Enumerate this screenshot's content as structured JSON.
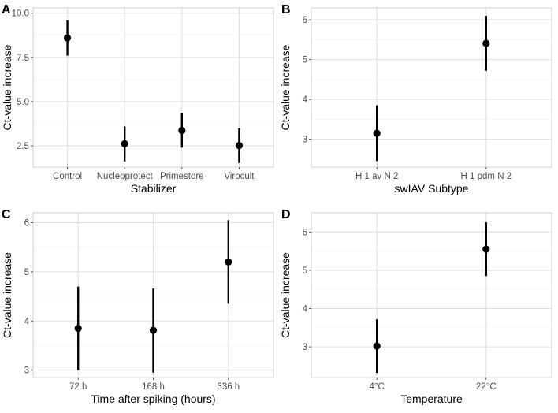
{
  "chart_data": [
    {
      "type": "scatter",
      "letter": "A",
      "xlabel": "Stabilizer",
      "ylabel": "Ct-value increase",
      "categories": [
        "Control",
        "Nucleoprotect",
        "Primestore",
        "Virocult"
      ],
      "y_ticks": [
        2.5,
        5.0,
        7.5,
        10.0
      ],
      "y_tick_labels": [
        "2.5",
        "5.0",
        "7.5",
        "10.0"
      ],
      "ylim": [
        1.3,
        10.3
      ],
      "values": [
        8.6,
        2.62,
        3.37,
        2.52
      ],
      "lower": [
        7.6,
        1.62,
        2.4,
        1.53
      ],
      "upper": [
        9.6,
        3.6,
        4.35,
        3.5
      ]
    },
    {
      "type": "scatter",
      "letter": "B",
      "xlabel": "swIAV Subtype",
      "ylabel": "Ct-value increase",
      "categories": [
        "H 1 av N 2",
        "H 1 pdm N 2"
      ],
      "y_ticks": [
        3,
        4,
        5,
        6
      ],
      "y_tick_labels": [
        "3",
        "4",
        "5",
        "6"
      ],
      "ylim": [
        2.3,
        6.3
      ],
      "values": [
        3.15,
        5.41
      ],
      "lower": [
        2.45,
        4.72
      ],
      "upper": [
        3.85,
        6.1
      ]
    },
    {
      "type": "scatter",
      "letter": "C",
      "xlabel": "Time after spiking (hours)",
      "ylabel": "Ct-value increase",
      "categories": [
        "72 h",
        "168 h",
        "336 h"
      ],
      "y_ticks": [
        3,
        4,
        5,
        6
      ],
      "y_tick_labels": [
        "3",
        "4",
        "5",
        "6"
      ],
      "ylim": [
        2.85,
        6.2
      ],
      "values": [
        3.85,
        3.81,
        5.2
      ],
      "lower": [
        3.0,
        2.95,
        4.35
      ],
      "upper": [
        4.7,
        4.66,
        6.05
      ]
    },
    {
      "type": "scatter",
      "letter": "D",
      "xlabel": "Temperature",
      "ylabel": "Ct-value increase",
      "categories": [
        "4°C",
        "22°C"
      ],
      "y_ticks": [
        3,
        4,
        5,
        6
      ],
      "y_tick_labels": [
        "3",
        "4",
        "5",
        "6"
      ],
      "ylim": [
        2.2,
        6.5
      ],
      "values": [
        3.02,
        5.55
      ],
      "lower": [
        2.32,
        4.85
      ],
      "upper": [
        3.72,
        6.25
      ]
    }
  ]
}
